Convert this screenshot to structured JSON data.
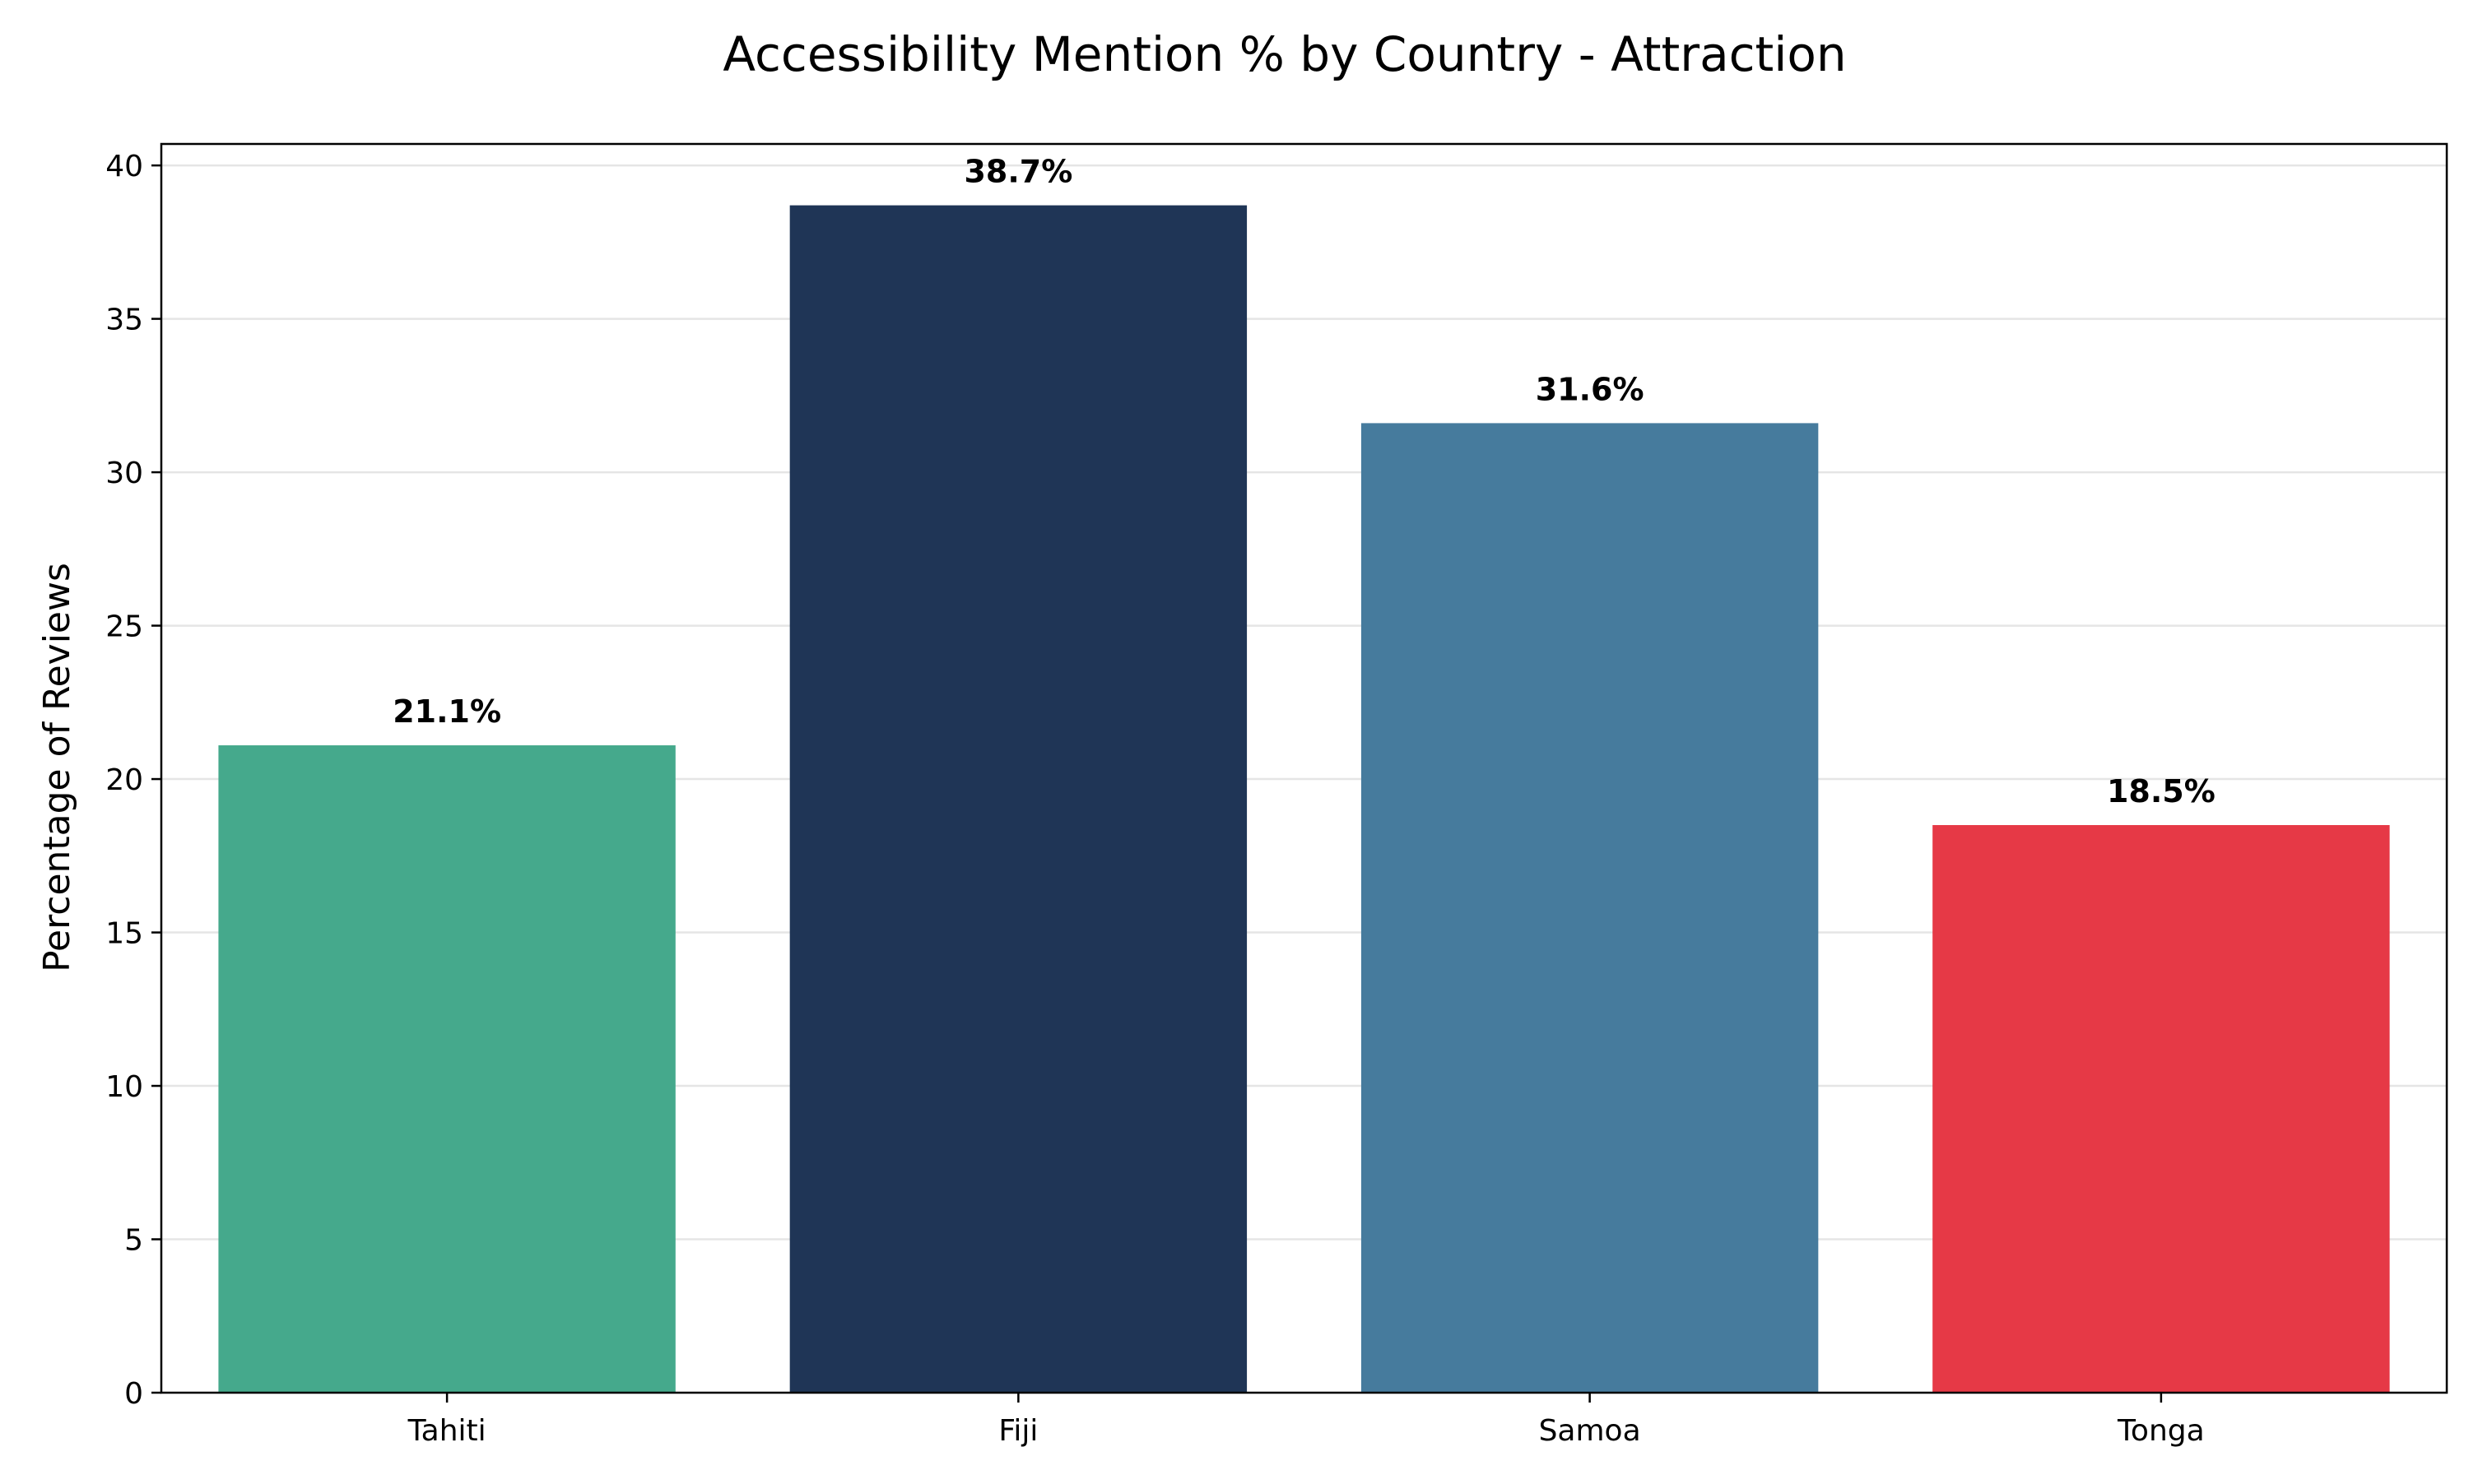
{
  "chart_data": {
    "type": "bar",
    "title": "Accessibility Mention % by Country - Attraction",
    "xlabel": "",
    "ylabel": "Percentage of Reviews",
    "categories": [
      "Tahiti",
      "Fiji",
      "Samoa",
      "Tonga"
    ],
    "values": [
      21.1,
      38.7,
      31.6,
      18.5
    ],
    "data_labels": [
      "21.1%",
      "38.7%",
      "31.6%",
      "18.5%"
    ],
    "colors": [
      "#45a98c",
      "#1f3556",
      "#467b9d",
      "#e63946"
    ],
    "ylim": [
      0,
      40.7
    ],
    "yticks": [
      0,
      5,
      10,
      15,
      20,
      25,
      30,
      35,
      40
    ],
    "ytick_labels": [
      "0",
      "5",
      "10",
      "15",
      "20",
      "25",
      "30",
      "35",
      "40"
    ],
    "grid": "horizontal",
    "grid_color": "#e5e5e5"
  }
}
